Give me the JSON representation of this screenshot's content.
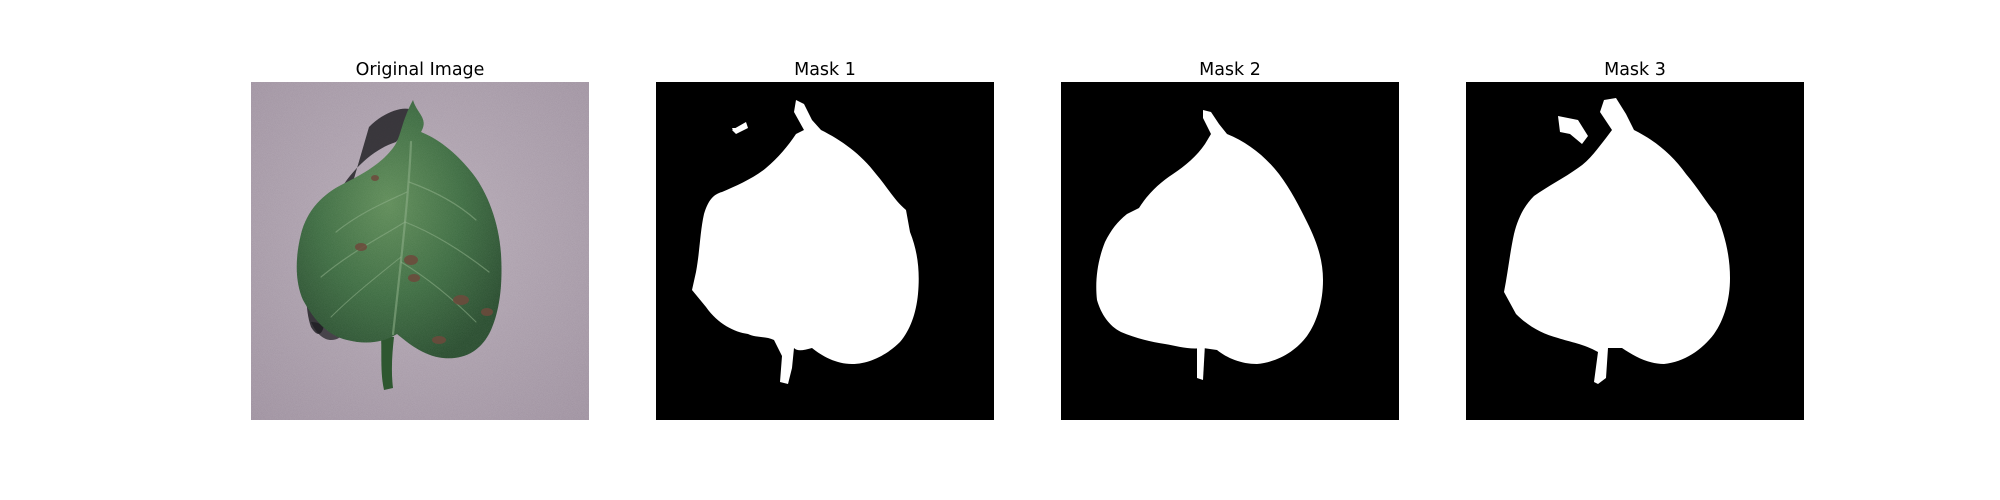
{
  "figure": {
    "panels": [
      {
        "title": "Original Image",
        "kind": "photo",
        "subject": "leaf-on-gray-background"
      },
      {
        "title": "Mask 1",
        "kind": "binary-mask",
        "foreground_color": "#ffffff",
        "background_color": "#000000"
      },
      {
        "title": "Mask 2",
        "kind": "binary-mask",
        "foreground_color": "#ffffff",
        "background_color": "#000000"
      },
      {
        "title": "Mask 3",
        "kind": "binary-mask",
        "foreground_color": "#ffffff",
        "background_color": "#000000"
      }
    ],
    "colors": {
      "background": "#a89aa8",
      "leaf_dark": "#24492a",
      "leaf_mid": "#3a6a3e",
      "leaf_light": "#5c8a55",
      "lesion": "#6e4a3c"
    }
  }
}
